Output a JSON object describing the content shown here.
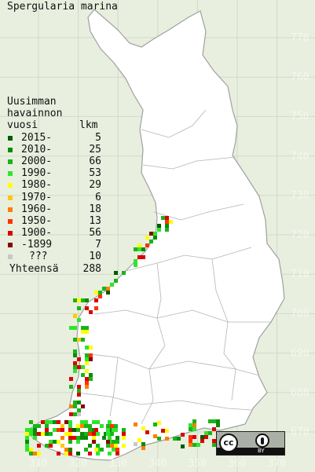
{
  "title": "Spergularia marina",
  "legend": {
    "header_line1": "Uusimman",
    "header_line2": "havainnon",
    "header_line3_left": "vuosi",
    "header_line3_right": "lkm",
    "rows": [
      {
        "label": "2015-",
        "count": "5",
        "color": "#005a00"
      },
      {
        "label": "2010-",
        "count": "25",
        "color": "#0a8c0a"
      },
      {
        "label": "2000-",
        "count": "66",
        "color": "#19b419"
      },
      {
        "label": "1990-",
        "count": "53",
        "color": "#2ee52e"
      },
      {
        "label": "1980-",
        "count": "29",
        "color": "#ffff00"
      },
      {
        "label": "1970-",
        "count": "6",
        "color": "#ffc800"
      },
      {
        "label": "1960-",
        "count": "18",
        "color": "#ff7d00"
      },
      {
        "label": "1950-",
        "count": "13",
        "color": "#ff3200"
      },
      {
        "label": "1900-",
        "count": "56",
        "color": "#dc0000"
      },
      {
        "label": "-1899",
        "count": "7",
        "color": "#8c0000"
      },
      {
        "label": "???",
        "count": "10",
        "color": "#c8c8c8"
      }
    ],
    "total_label": "Yhteensä",
    "total_count": "288"
  },
  "axes": {
    "y_labels": [
      "770",
      "760",
      "750",
      "740",
      "730",
      "720",
      "710",
      "700",
      "690",
      "680",
      "670"
    ],
    "x_labels": [
      "310",
      "320",
      "330",
      "340",
      "350",
      "360",
      "370"
    ]
  },
  "colors": {
    "background": "#e8efde",
    "land": "#ffffff",
    "grid": "#d2d8cc",
    "border": "#a8a8a8"
  },
  "license": {
    "badge": "cc",
    "text": "BY"
  }
}
